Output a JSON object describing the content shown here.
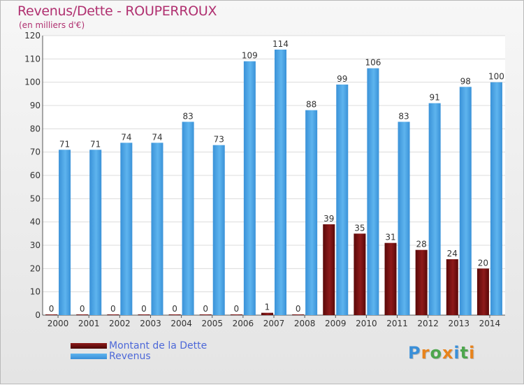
{
  "title": "Revenus/Dette - ROUPERROUX",
  "subtitle": "(en milliers d'€)",
  "logo": {
    "text": "Proxiti",
    "colors": [
      "#3a8fd8",
      "#e8831c",
      "#4ea64e",
      "#e8831c",
      "#3a8fd8",
      "#4ea64e",
      "#e8831c"
    ]
  },
  "chart_data": {
    "type": "bar",
    "categories": [
      "2000",
      "2001",
      "2002",
      "2003",
      "2004",
      "2005",
      "2006",
      "2007",
      "2008",
      "2009",
      "2010",
      "2011",
      "2012",
      "2013",
      "2014"
    ],
    "series": [
      {
        "name": "Montant de la Dette",
        "color": "#7a0f0f",
        "values": [
          0,
          0,
          0,
          0,
          0,
          0,
          0,
          1,
          0,
          39,
          35,
          31,
          28,
          24,
          20
        ]
      },
      {
        "name": "Revenus",
        "color": "#4ea8e8",
        "values": [
          71,
          71,
          74,
          74,
          83,
          73,
          109,
          114,
          88,
          99,
          106,
          83,
          91,
          98,
          100
        ]
      }
    ],
    "ylim": [
      0,
      120
    ],
    "yticks": [
      0,
      10,
      20,
      30,
      40,
      50,
      60,
      70,
      80,
      90,
      100,
      110,
      120
    ],
    "grid": true,
    "legend": "bottom-left"
  }
}
